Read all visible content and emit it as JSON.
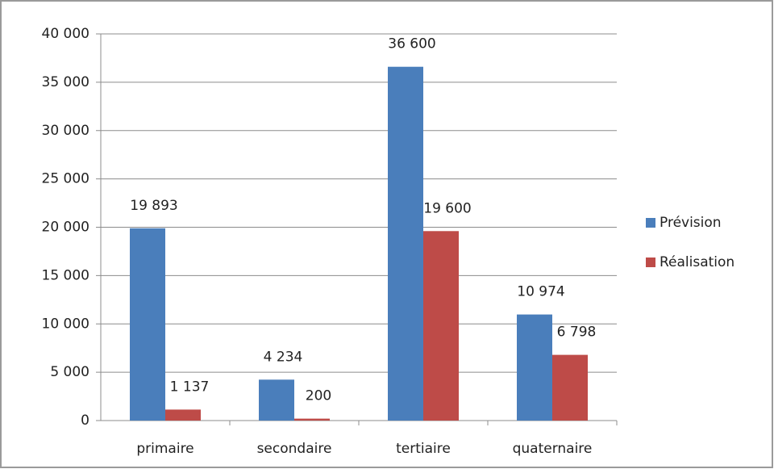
{
  "chart_data": {
    "type": "bar",
    "categories": [
      "primaire",
      "secondaire",
      "tertiaire",
      "quaternaire"
    ],
    "series": [
      {
        "name": "Prévision",
        "color": "#4a7ebb",
        "values": [
          19893,
          4234,
          36600,
          10974
        ],
        "value_labels": [
          "19 893",
          "4 234",
          "36 600",
          "10 974"
        ]
      },
      {
        "name": "Réalisation",
        "color": "#be4b48",
        "values": [
          1137,
          200,
          19600,
          6798
        ],
        "value_labels": [
          "1 137",
          "200",
          "19 600",
          "6 798"
        ]
      }
    ],
    "ylim": [
      0,
      40000
    ],
    "yticks": [
      0,
      {
        "value": 5000,
        "label": "5 000"
      },
      {
        "value": 10000,
        "label": "10 000"
      },
      {
        "value": 15000,
        "label": "15 000"
      },
      {
        "value": 20000,
        "label": "20 000"
      },
      {
        "value": 25000,
        "label": "25 000"
      },
      {
        "value": 30000,
        "label": "30 000"
      },
      {
        "value": 35000,
        "label": "35 000"
      },
      {
        "value": 40000,
        "label": "40 000"
      }
    ],
    "grid": true,
    "legend": "right"
  }
}
